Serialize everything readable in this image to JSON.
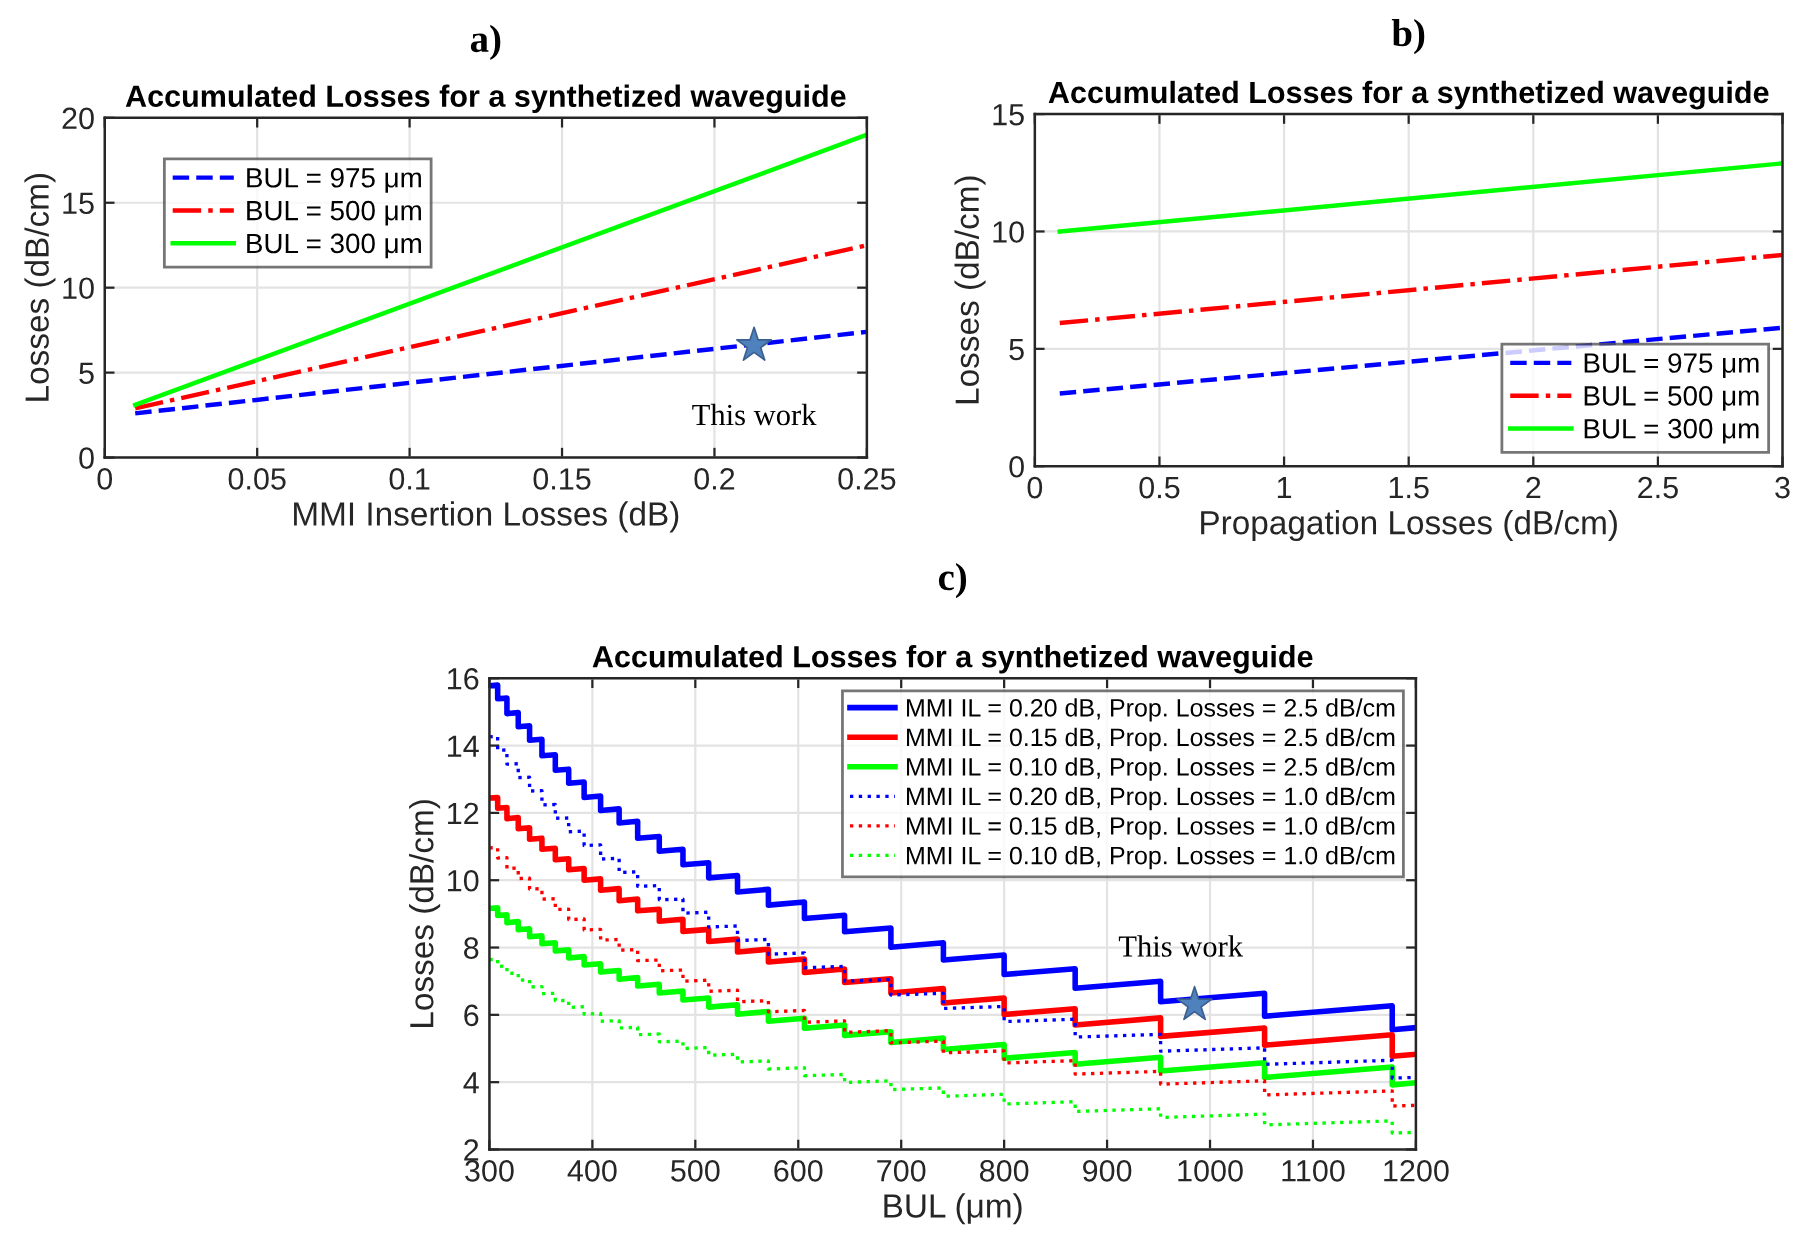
{
  "chart_data": [
    {
      "type": "line",
      "annotations": [
        "a)",
        {
          "text": "This work",
          "x": 0.213,
          "y": 6.6
        }
      ],
      "title": "Accumulated Losses for a synthetized waveguide",
      "xlabel": "MMI Insertion Losses (dB)",
      "ylabel": "Losses (dB/cm)",
      "x": [
        0.01,
        0.25
      ],
      "xlim": [
        0,
        0.25
      ],
      "xticks": [
        0,
        0.05,
        0.1,
        0.15,
        0.2,
        0.25
      ],
      "ylim": [
        0,
        20
      ],
      "yticks": [
        0,
        5,
        10,
        15,
        20
      ],
      "grid": true,
      "legend": "top left",
      "series": [
        {
          "name": "BUL = 975 μm",
          "color": "#0000ff",
          "line_style": "dashed",
          "values": [
            2.6,
            7.4
          ]
        },
        {
          "name": "BUL = 500 μm",
          "color": "#ff0000",
          "line_style": "dashdot",
          "values": [
            2.9,
            12.5
          ]
        },
        {
          "name": "BUL = 300 μm",
          "color": "#00ff00",
          "line_style": "solid",
          "values": [
            3.1,
            19.0
          ]
        },
        {
          "type": "scatter",
          "marker": "star",
          "color": "#4f81bd",
          "x": [
            0.213
          ],
          "values": [
            6.6
          ]
        }
      ]
    },
    {
      "type": "line",
      "annotations": [
        "b)"
      ],
      "title": "Accumulated Losses for a synthetized waveguide",
      "xlabel": "Propagation Losses (dB/cm)",
      "ylabel": "Losses (dB/cm)",
      "x": [
        0.1,
        3
      ],
      "xlim": [
        0,
        3
      ],
      "xticks": [
        0,
        0.5,
        1,
        1.5,
        2,
        2.5,
        3
      ],
      "ylim": [
        0,
        15
      ],
      "yticks": [
        0,
        5,
        10,
        15
      ],
      "grid": true,
      "legend": "bottom right",
      "series": [
        {
          "name": "BUL = 975 μm",
          "color": "#0000ff",
          "line_style": "dashed",
          "values": [
            3.1,
            5.9
          ]
        },
        {
          "name": "BUL = 500 μm",
          "color": "#ff0000",
          "line_style": "dashdot",
          "values": [
            6.1,
            9.0
          ]
        },
        {
          "name": "BUL = 300 μm",
          "color": "#00ff00",
          "line_style": "solid",
          "values": [
            10.0,
            12.9
          ]
        }
      ]
    },
    {
      "type": "line",
      "annotations": [
        "c)",
        {
          "text": "This work",
          "x": 985,
          "y": 6.3
        }
      ],
      "title": "Accumulated Losses for a synthetized waveguide",
      "xlabel": "BUL (μm)",
      "ylabel": "Losses (dB/cm)",
      "xlim": [
        300,
        1200
      ],
      "xticks": [
        300,
        400,
        500,
        600,
        700,
        800,
        900,
        1000,
        1100,
        1200
      ],
      "ylim": [
        2,
        16
      ],
      "yticks": [
        2,
        4,
        6,
        8,
        10,
        12,
        14,
        16
      ],
      "grid": true,
      "legend": "top right",
      "x": [
        300,
        308,
        308,
        317,
        317,
        328,
        328,
        339,
        339,
        351,
        351,
        364,
        364,
        377,
        377,
        392,
        392,
        408,
        408,
        426,
        426,
        444,
        444,
        465,
        465,
        488,
        488,
        513,
        513,
        541,
        541,
        571,
        571,
        606,
        606,
        645,
        645,
        690,
        690,
        741,
        741,
        800,
        800,
        869,
        869,
        952,
        952,
        1053,
        1053,
        1177,
        1177,
        1200
      ],
      "series": [
        {
          "name": "MMI IL = 0.20 dB, Prop. Losses = 2.5 dB/cm",
          "color": "#0000ff",
          "line_style": "solid",
          "values": [
            15.78,
            15.8,
            15.39,
            15.41,
            14.95,
            14.98,
            14.56,
            14.59,
            14.16,
            14.19,
            13.7,
            13.73,
            13.27,
            13.3,
            12.88,
            12.92,
            12.46,
            12.5,
            12.07,
            12.12,
            11.7,
            11.75,
            11.25,
            11.3,
            10.86,
            10.92,
            10.46,
            10.52,
            10.07,
            10.14,
            9.65,
            9.73,
            9.26,
            9.35,
            8.86,
            8.96,
            8.47,
            8.58,
            8.01,
            8.14,
            7.63,
            7.78,
            7.2,
            7.37,
            6.79,
            7.0,
            6.39,
            6.64,
            5.96,
            6.27,
            5.56,
            5.62
          ]
        },
        {
          "name": "MMI IL = 0.15 dB, Prop. Losses = 2.5 dB/cm",
          "color": "#ff0000",
          "line_style": "solid",
          "values": [
            12.44,
            12.46,
            12.14,
            12.16,
            11.83,
            11.86,
            11.53,
            11.56,
            11.22,
            11.25,
            10.92,
            10.95,
            10.61,
            10.64,
            10.31,
            10.35,
            10.0,
            10.04,
            9.7,
            9.75,
            9.39,
            9.44,
            9.09,
            9.14,
            8.78,
            8.84,
            8.48,
            8.54,
            8.18,
            8.25,
            7.87,
            7.95,
            7.57,
            7.66,
            7.26,
            7.36,
            6.96,
            7.07,
            6.65,
            6.78,
            6.35,
            6.5,
            6.01,
            6.18,
            5.7,
            5.91,
            5.36,
            5.61,
            5.1,
            5.41,
            4.77,
            4.83
          ]
        },
        {
          "name": "MMI IL = 0.10 dB, Prop. Losses = 2.5 dB/cm",
          "color": "#00ff00",
          "line_style": "solid",
          "values": [
            9.16,
            9.18,
            8.95,
            8.97,
            8.74,
            8.77,
            8.53,
            8.56,
            8.32,
            8.35,
            8.11,
            8.14,
            7.9,
            7.93,
            7.69,
            7.73,
            7.48,
            7.52,
            7.27,
            7.32,
            7.06,
            7.11,
            6.86,
            6.91,
            6.65,
            6.71,
            6.44,
            6.5,
            6.23,
            6.3,
            6.02,
            6.1,
            5.81,
            5.9,
            5.6,
            5.7,
            5.39,
            5.5,
            5.18,
            5.31,
            4.97,
            5.12,
            4.71,
            4.88,
            4.53,
            4.74,
            4.33,
            4.58,
            4.14,
            4.45,
            3.92,
            3.98
          ]
        },
        {
          "name": "MMI IL = 0.20 dB, Prop. Losses = 1.0 dB/cm",
          "color": "#0000ff",
          "line_style": "dotted",
          "values": [
            14.26,
            14.27,
            13.86,
            13.87,
            13.45,
            13.46,
            13.05,
            13.06,
            12.65,
            12.66,
            12.24,
            12.25,
            11.84,
            11.85,
            11.44,
            11.46,
            11.03,
            11.05,
            10.63,
            10.65,
            10.23,
            10.25,
            9.82,
            9.84,
            9.42,
            9.44,
            9.02,
            9.05,
            8.61,
            8.64,
            8.21,
            8.24,
            7.8,
            7.84,
            7.4,
            7.44,
            7.0,
            7.05,
            6.59,
            6.64,
            6.19,
            6.25,
            5.8,
            5.87,
            5.34,
            5.42,
            4.92,
            5.02,
            4.53,
            4.65,
            4.12,
            4.14
          ]
        },
        {
          "name": "MMI IL = 0.15 dB, Prop. Losses = 1.0 dB/cm",
          "color": "#ff0000",
          "line_style": "dotted",
          "values": [
            10.96,
            10.97,
            10.66,
            10.67,
            10.35,
            10.36,
            10.05,
            10.06,
            9.74,
            9.75,
            9.44,
            9.45,
            9.13,
            9.14,
            8.83,
            8.85,
            8.52,
            8.54,
            8.22,
            8.24,
            7.92,
            7.94,
            7.61,
            7.63,
            7.31,
            7.33,
            7.0,
            7.03,
            6.7,
            6.73,
            6.39,
            6.42,
            6.09,
            6.13,
            5.78,
            5.82,
            5.48,
            5.53,
            5.17,
            5.22,
            4.87,
            4.93,
            4.57,
            4.64,
            4.24,
            4.32,
            3.94,
            4.04,
            3.62,
            3.74,
            3.29,
            3.31
          ]
        },
        {
          "name": "MMI IL = 0.10 dB, Prop. Losses = 1.0 dB/cm",
          "color": "#00ff00",
          "line_style": "dotted",
          "values": [
            7.64,
            7.65,
            7.44,
            7.45,
            7.23,
            7.24,
            7.03,
            7.04,
            6.83,
            6.84,
            6.63,
            6.64,
            6.42,
            6.43,
            6.22,
            6.24,
            6.02,
            6.04,
            5.81,
            5.83,
            5.61,
            5.63,
            5.41,
            5.43,
            5.2,
            5.22,
            5.0,
            5.03,
            4.8,
            4.83,
            4.6,
            4.63,
            4.39,
            4.43,
            4.19,
            4.23,
            3.99,
            4.04,
            3.78,
            3.83,
            3.58,
            3.64,
            3.35,
            3.42,
            3.13,
            3.21,
            2.95,
            3.05,
            2.73,
            2.85,
            2.49,
            2.51
          ]
        },
        {
          "type": "scatter",
          "marker": "star",
          "color": "#4f81bd",
          "x": [
            985
          ],
          "values": [
            6.3
          ]
        }
      ]
    }
  ]
}
